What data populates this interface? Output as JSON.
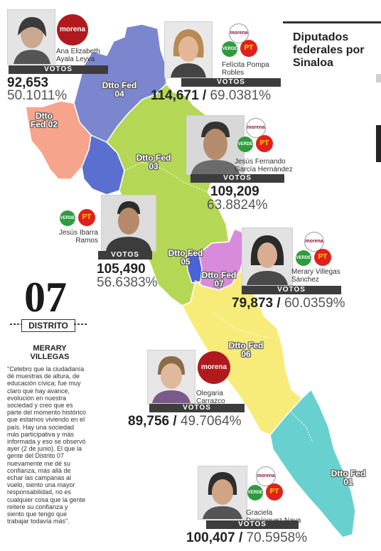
{
  "title": "Diputados federales por Sinaloa",
  "districts": {
    "d01": "Dtto Fed 01",
    "d02": "Dtto Fed 02",
    "d03": "Dtto Fed 03",
    "d04": "Dtto Fed 04",
    "d05": "Dtto Fed 05",
    "d06": "Dtto Fed 06",
    "d07": "Dtto Fed 07"
  },
  "votos_label": "VOTOS",
  "party_labels": {
    "morena": "morena",
    "pt": "PT",
    "verde": "VERDE"
  },
  "candidates": {
    "ana": {
      "name": "Ana Elizabeth Ayala Leyva",
      "votes": "92,653",
      "percent": "50.1011%",
      "district": "04"
    },
    "felicita": {
      "name": "Felícita Pompa Robles",
      "votes": "114,671",
      "percent": "69.0381%",
      "district": "02"
    },
    "jesusf": {
      "name": "Jesús Fernando García Hernández",
      "votes": "109,209",
      "percent": "63.8824%",
      "district": "03"
    },
    "jesusi": {
      "name": "Jesús Ibarra Ramos",
      "votes": "105,490",
      "percent": "56.6383%",
      "district": "05"
    },
    "merary": {
      "name": "Merary Villegas Sánchez",
      "votes": "79,873",
      "percent": "60.0359%",
      "district": "07"
    },
    "olegaria": {
      "name": "Olegaria Carrazco",
      "votes": "89,756",
      "percent": "49.7064%",
      "district": "06"
    },
    "graciela": {
      "name": "Graciela Domínguez Nava",
      "votes": "100,407",
      "percent": "70.5958%",
      "district": "01"
    }
  },
  "sidebar": {
    "number": "07",
    "label": "DISTRITO",
    "name": "MERARY VILLEGAS",
    "quote": "\"Celebro que la ciudadanía dé muestras de altura, de educación cívica; fue muy claro que hay avance, evolución en nuestra sociedad y creo que es parte del momento histórico que estamos viviendo en el país. Hay una sociedad más participativa y más informada y eso se observó ayer (2 de junio). El que la gente del Distrito 07 nuevamente me dé su confianza, más allá de echar las campanas al vuelo, siento una mayor responsabilidad, no es cualquier cosa que la gente reitere su confianza y siento que tengo que trabajar todavía más\"."
  },
  "colors": {
    "d04": "#7b86cf",
    "d02": "#f6a48c",
    "d03": "#b4d855",
    "d05": "#5a6fd0",
    "d07": "#d98bdb",
    "d06": "#f7ec7a",
    "d01": "#68d1cf"
  }
}
